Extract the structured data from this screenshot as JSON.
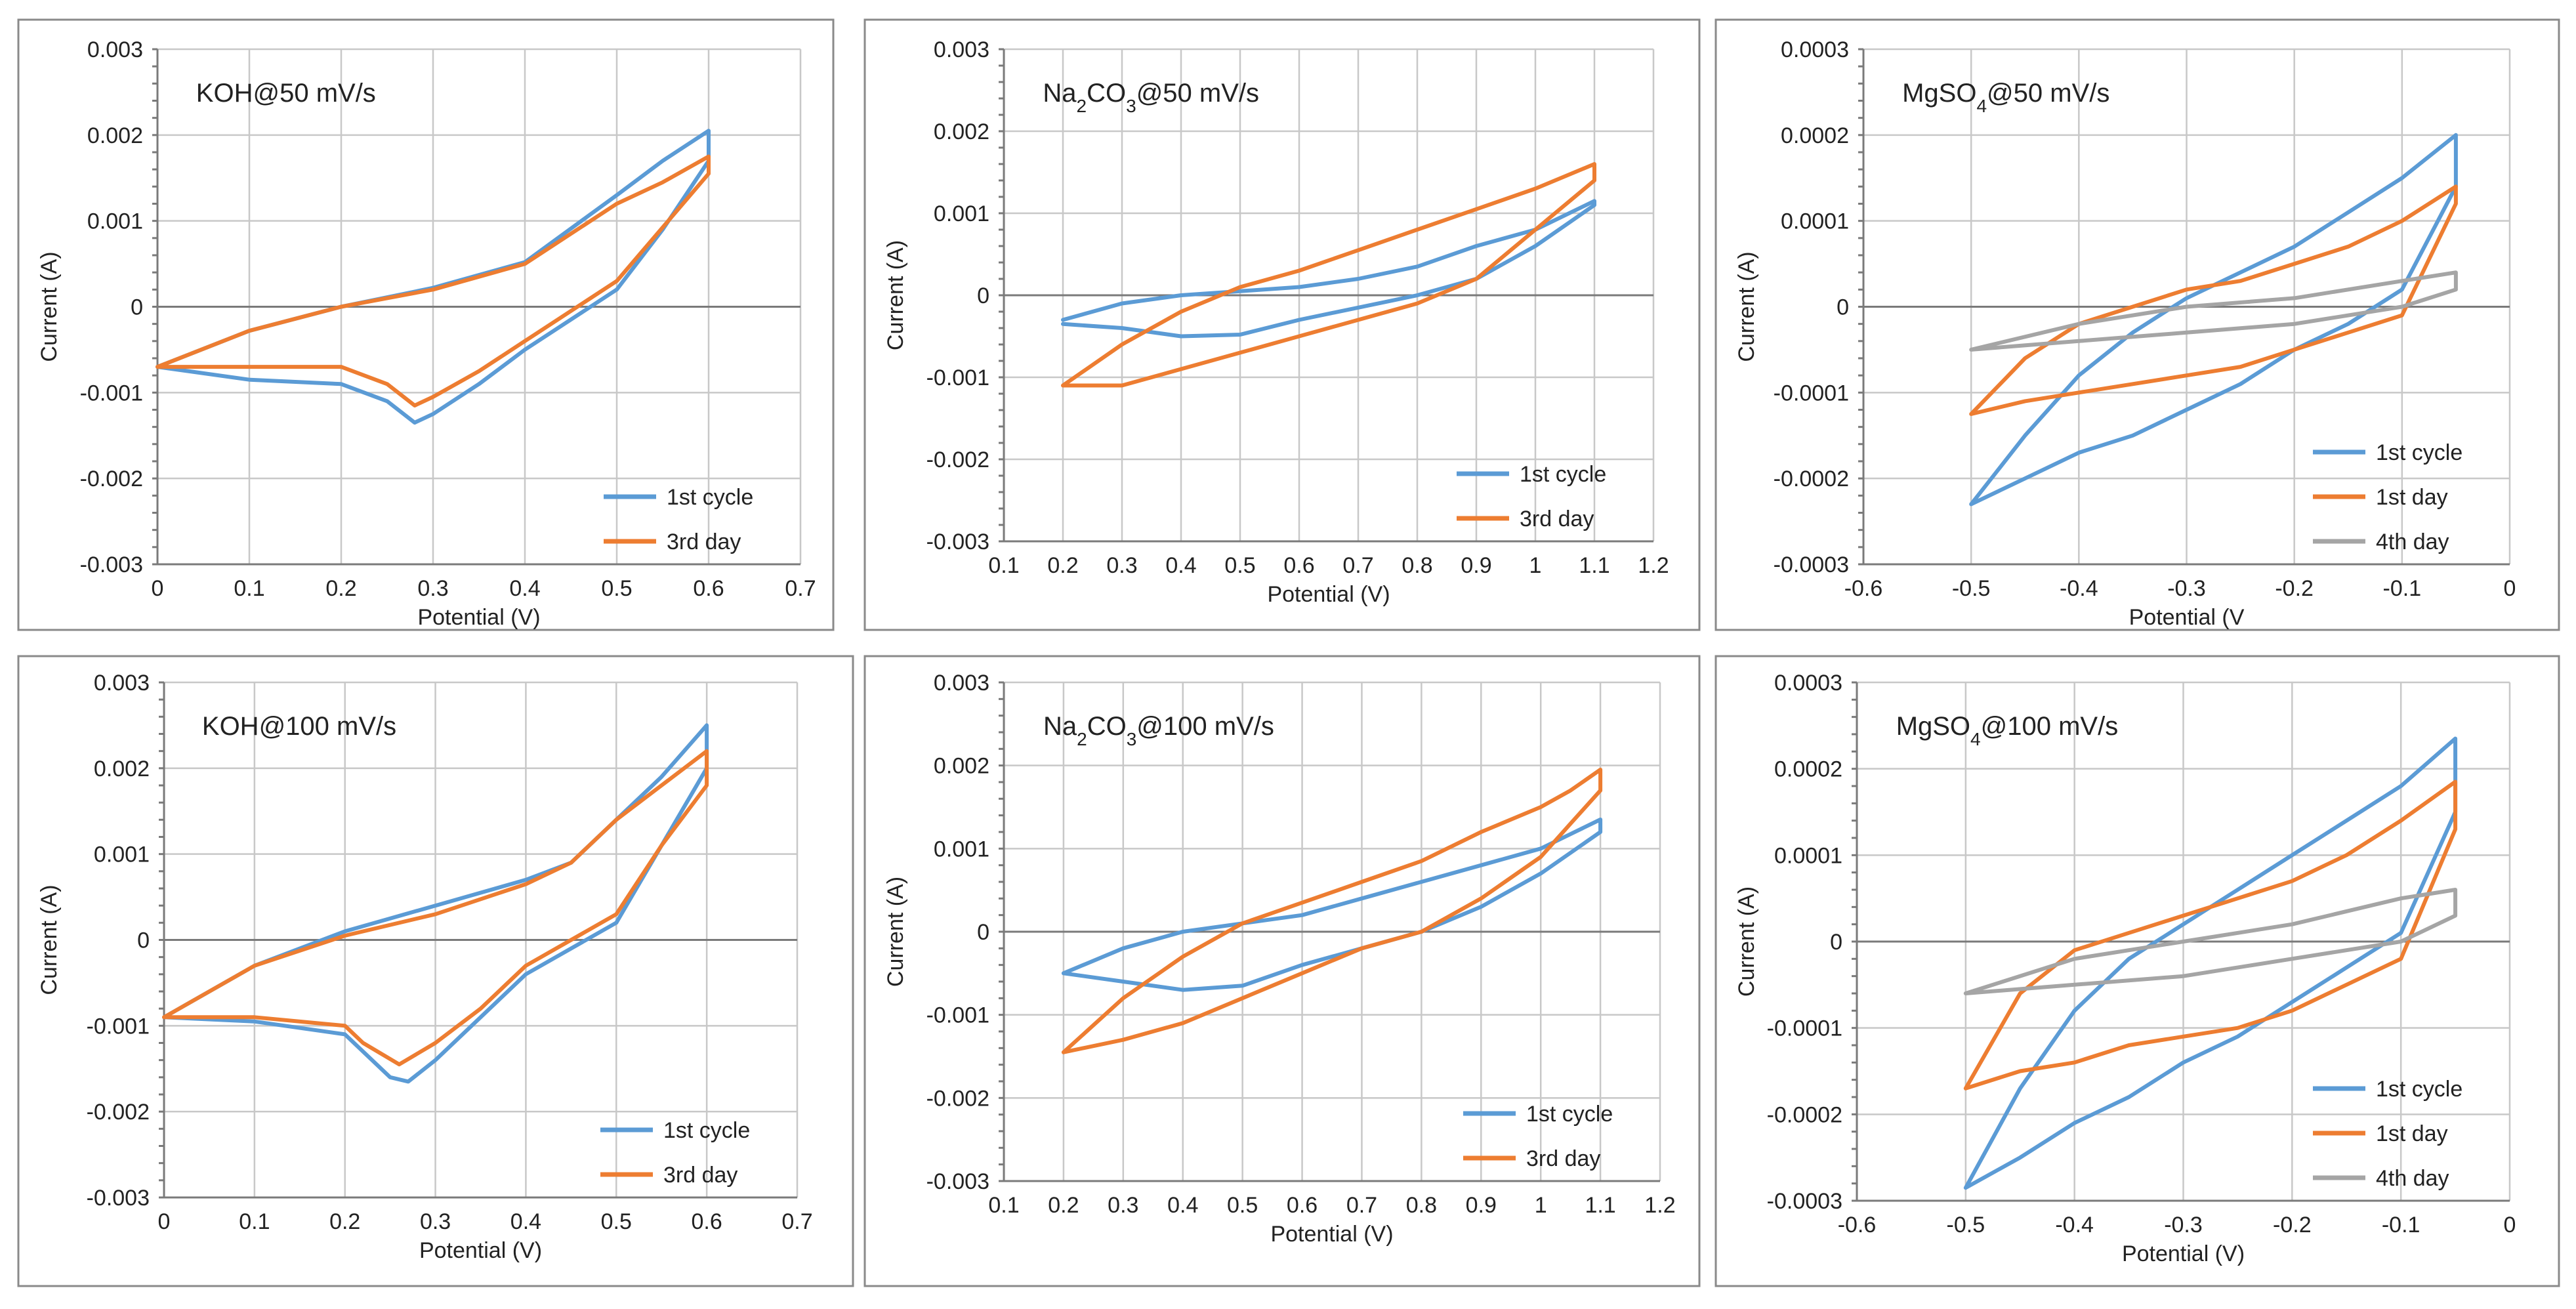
{
  "colors": {
    "series1": "#5b9bd5",
    "series2": "#ed7d31",
    "series3": "#a5a5a5"
  },
  "chart_data": [
    {
      "type": "line",
      "title": "KOH@50 mV/s",
      "title_parts": [
        {
          "t": "KOH@50 mV/s"
        }
      ],
      "xlabel": "Potential (V)",
      "ylabel": "Current (A)",
      "xlim": [
        0,
        0.7
      ],
      "ylim": [
        -0.003,
        0.003
      ],
      "grid": true,
      "legend": "bottom-right",
      "xticks": [
        0,
        0.1,
        0.2,
        0.3,
        0.4,
        0.5,
        0.6,
        0.7
      ],
      "xtick_labels": [
        "0",
        "0.1",
        "0.2",
        "0.3",
        "0.4",
        "0.5",
        "0.6",
        "0.7"
      ],
      "yticks": [
        -0.003,
        -0.002,
        -0.001,
        0,
        0.001,
        0.002,
        0.003
      ],
      "ytick_labels": [
        "-0.003",
        "-0.002",
        "-0.001",
        "0",
        "0.001",
        "0.002",
        "0.003"
      ],
      "series": [
        {
          "name": "1st cycle",
          "color": "#5b9bd5",
          "x": [
            0,
            0.1,
            0.2,
            0.3,
            0.4,
            0.5,
            0.55,
            0.6,
            0.6,
            0.55,
            0.5,
            0.4,
            0.35,
            0.3,
            0.28,
            0.25,
            0.2,
            0.1,
            0
          ],
          "y": [
            -0.0007,
            -0.00028,
            0.0,
            0.00022,
            0.00052,
            0.0013,
            0.0017,
            0.00205,
            0.0017,
            0.0009,
            0.0002,
            -0.0005,
            -0.0009,
            -0.00125,
            -0.00135,
            -0.0011,
            -0.0009,
            -0.00085,
            -0.0007
          ]
        },
        {
          "name": "3rd day",
          "color": "#ed7d31",
          "x": [
            0,
            0.1,
            0.2,
            0.3,
            0.4,
            0.5,
            0.55,
            0.6,
            0.6,
            0.5,
            0.4,
            0.35,
            0.3,
            0.28,
            0.25,
            0.2,
            0.1,
            0
          ],
          "y": [
            -0.0007,
            -0.00028,
            0.0,
            0.0002,
            0.0005,
            0.0012,
            0.00145,
            0.00175,
            0.00155,
            0.0003,
            -0.0004,
            -0.00075,
            -0.00105,
            -0.00115,
            -0.0009,
            -0.0007,
            -0.0007,
            -0.0007
          ]
        }
      ]
    },
    {
      "type": "line",
      "title": "Na2CO3@50 mV/s",
      "title_parts": [
        {
          "t": "Na"
        },
        {
          "t": "2",
          "sub": true
        },
        {
          "t": "CO"
        },
        {
          "t": "3",
          "sub": true
        },
        {
          "t": "@50 mV/s"
        }
      ],
      "xlabel": "Potential (V)",
      "ylabel": "Current (A)",
      "xlim": [
        0.1,
        1.2
      ],
      "ylim": [
        -0.003,
        0.003
      ],
      "grid": true,
      "legend": "bottom-right",
      "xticks": [
        0.1,
        0.2,
        0.3,
        0.4,
        0.5,
        0.6,
        0.7,
        0.8,
        0.9,
        1.0,
        1.1,
        1.2
      ],
      "xtick_labels": [
        "0.1",
        "0.2",
        "0.3",
        "0.4",
        "0.5",
        "0.6",
        "0.7",
        "0.8",
        "0.9",
        "1",
        "1.1",
        "1.2"
      ],
      "yticks": [
        -0.003,
        -0.002,
        -0.001,
        0,
        0.001,
        0.002,
        0.003
      ],
      "ytick_labels": [
        "-0.003",
        "-0.002",
        "-0.001",
        "0",
        "0.001",
        "0.002",
        "0.003"
      ],
      "series": [
        {
          "name": "1st cycle",
          "color": "#5b9bd5",
          "x": [
            0.2,
            0.3,
            0.4,
            0.5,
            0.6,
            0.7,
            0.8,
            0.9,
            1.0,
            1.1,
            1.1,
            1.0,
            0.9,
            0.8,
            0.7,
            0.6,
            0.5,
            0.4,
            0.3,
            0.2
          ],
          "y": [
            -0.0003,
            -0.0001,
            0.0,
            5e-05,
            0.0001,
            0.0002,
            0.00035,
            0.0006,
            0.0008,
            0.00115,
            0.0011,
            0.0006,
            0.0002,
            0.0,
            -0.00015,
            -0.0003,
            -0.00048,
            -0.0005,
            -0.0004,
            -0.00035
          ]
        },
        {
          "name": "3rd day",
          "color": "#ed7d31",
          "x": [
            0.2,
            0.3,
            0.4,
            0.5,
            0.6,
            0.7,
            0.8,
            0.9,
            1.0,
            1.1,
            1.1,
            1.0,
            0.9,
            0.8,
            0.7,
            0.6,
            0.5,
            0.4,
            0.3,
            0.2
          ],
          "y": [
            -0.0011,
            -0.0006,
            -0.0002,
            0.0001,
            0.0003,
            0.00055,
            0.0008,
            0.00105,
            0.0013,
            0.0016,
            0.0014,
            0.0008,
            0.0002,
            -0.0001,
            -0.0003,
            -0.0005,
            -0.0007,
            -0.0009,
            -0.0011,
            -0.0011
          ]
        }
      ]
    },
    {
      "type": "line",
      "title": "MgSO4@50 mV/s",
      "title_parts": [
        {
          "t": "MgSO"
        },
        {
          "t": "4",
          "sub": true
        },
        {
          "t": "@50 mV/s"
        }
      ],
      "xlabel": "Potential (V",
      "ylabel": "Current (A)",
      "xlim": [
        -0.6,
        0
      ],
      "ylim": [
        -0.0003,
        0.0003
      ],
      "grid": true,
      "legend": "bottom-right",
      "xticks": [
        -0.6,
        -0.5,
        -0.4,
        -0.3,
        -0.2,
        -0.1,
        0
      ],
      "xtick_labels": [
        "-0.6",
        "-0.5",
        "-0.4",
        "-0.3",
        "-0.2",
        "-0.1",
        "0"
      ],
      "yticks": [
        -0.0003,
        -0.0002,
        -0.0001,
        0,
        0.0001,
        0.0002,
        0.0003
      ],
      "ytick_labels": [
        "-0.0003",
        "-0.0002",
        "-0.0001",
        "0",
        "0.0001",
        "0.0002",
        "0.0003"
      ],
      "series": [
        {
          "name": "1st cycle",
          "color": "#5b9bd5",
          "x": [
            -0.5,
            -0.45,
            -0.4,
            -0.35,
            -0.3,
            -0.25,
            -0.2,
            -0.15,
            -0.1,
            -0.05,
            -0.05,
            -0.1,
            -0.15,
            -0.2,
            -0.25,
            -0.3,
            -0.35,
            -0.4,
            -0.45,
            -0.5
          ],
          "y": [
            -0.00023,
            -0.0002,
            -0.00017,
            -0.00015,
            -0.00012,
            -9e-05,
            -5e-05,
            -2e-05,
            2e-05,
            0.00014,
            0.0002,
            0.00015,
            0.00011,
            7e-05,
            4e-05,
            1e-05,
            -3e-05,
            -8e-05,
            -0.00015,
            -0.00023
          ]
        },
        {
          "name": "1st day",
          "color": "#ed7d31",
          "x": [
            -0.5,
            -0.45,
            -0.4,
            -0.35,
            -0.3,
            -0.25,
            -0.2,
            -0.15,
            -0.1,
            -0.05,
            -0.05,
            -0.1,
            -0.15,
            -0.2,
            -0.25,
            -0.3,
            -0.35,
            -0.4,
            -0.45,
            -0.5
          ],
          "y": [
            -0.000125,
            -0.00011,
            -0.0001,
            -9e-05,
            -8e-05,
            -7e-05,
            -5e-05,
            -3e-05,
            -1e-05,
            0.00012,
            0.00014,
            0.0001,
            7e-05,
            5e-05,
            3e-05,
            2e-05,
            0.0,
            -2e-05,
            -6e-05,
            -0.000125
          ]
        },
        {
          "name": "4th day",
          "color": "#a5a5a5",
          "x": [
            -0.5,
            -0.4,
            -0.3,
            -0.2,
            -0.1,
            -0.05,
            -0.05,
            -0.1,
            -0.2,
            -0.3,
            -0.4,
            -0.5
          ],
          "y": [
            -5e-05,
            -4e-05,
            -3e-05,
            -2e-05,
            0.0,
            2e-05,
            4e-05,
            3e-05,
            1e-05,
            0.0,
            -2e-05,
            -5e-05
          ]
        }
      ]
    },
    {
      "type": "line",
      "title": "KOH@100 mV/s",
      "title_parts": [
        {
          "t": "KOH@100 mV/s"
        }
      ],
      "xlabel": "Potential (V)",
      "ylabel": "Current (A)",
      "xlim": [
        0,
        0.7
      ],
      "ylim": [
        -0.003,
        0.003
      ],
      "grid": true,
      "legend": "bottom-right",
      "xticks": [
        0,
        0.1,
        0.2,
        0.3,
        0.4,
        0.5,
        0.6,
        0.7
      ],
      "xtick_labels": [
        "0",
        "0.1",
        "0.2",
        "0.3",
        "0.4",
        "0.5",
        "0.6",
        "0.7"
      ],
      "yticks": [
        -0.003,
        -0.002,
        -0.001,
        0,
        0.001,
        0.002,
        0.003
      ],
      "ytick_labels": [
        "-0.003",
        "-0.002",
        "-0.001",
        "0",
        "0.001",
        "0.002",
        "0.003"
      ],
      "series": [
        {
          "name": "1st cycle",
          "color": "#5b9bd5",
          "x": [
            0,
            0.1,
            0.2,
            0.3,
            0.4,
            0.45,
            0.5,
            0.55,
            0.6,
            0.6,
            0.55,
            0.5,
            0.4,
            0.35,
            0.3,
            0.27,
            0.25,
            0.2,
            0.1,
            0
          ],
          "y": [
            -0.0009,
            -0.0003,
            0.0001,
            0.0004,
            0.0007,
            0.0009,
            0.0014,
            0.0019,
            0.0025,
            0.002,
            0.0011,
            0.0002,
            -0.0004,
            -0.0009,
            -0.0014,
            -0.00165,
            -0.0016,
            -0.0011,
            -0.00095,
            -0.0009
          ]
        },
        {
          "name": "3rd day",
          "color": "#ed7d31",
          "x": [
            0,
            0.1,
            0.2,
            0.3,
            0.4,
            0.45,
            0.5,
            0.55,
            0.6,
            0.6,
            0.55,
            0.5,
            0.4,
            0.35,
            0.3,
            0.26,
            0.22,
            0.2,
            0.1,
            0
          ],
          "y": [
            -0.0009,
            -0.0003,
            5e-05,
            0.0003,
            0.00065,
            0.0009,
            0.0014,
            0.0018,
            0.0022,
            0.0018,
            0.0011,
            0.0003,
            -0.0003,
            -0.0008,
            -0.0012,
            -0.00145,
            -0.0012,
            -0.001,
            -0.0009,
            -0.0009
          ]
        }
      ]
    },
    {
      "type": "line",
      "title": "Na2CO3@100 mV/s",
      "title_parts": [
        {
          "t": "Na"
        },
        {
          "t": "2",
          "sub": true
        },
        {
          "t": "CO"
        },
        {
          "t": "3",
          "sub": true
        },
        {
          "t": "@100 mV/s"
        }
      ],
      "xlabel": "Potential (V)",
      "ylabel": "Current (A)",
      "xlim": [
        0.1,
        1.2
      ],
      "ylim": [
        -0.003,
        0.003
      ],
      "grid": true,
      "legend": "bottom-right",
      "xticks": [
        0.1,
        0.2,
        0.3,
        0.4,
        0.5,
        0.6,
        0.7,
        0.8,
        0.9,
        1.0,
        1.1,
        1.2
      ],
      "xtick_labels": [
        "0.1",
        "0.2",
        "0.3",
        "0.4",
        "0.5",
        "0.6",
        "0.7",
        "0.8",
        "0.9",
        "1",
        "1.1",
        "1.2"
      ],
      "yticks": [
        -0.003,
        -0.002,
        -0.001,
        0,
        0.001,
        0.002,
        0.003
      ],
      "ytick_labels": [
        "-0.003",
        "-0.002",
        "-0.001",
        "0",
        "0.001",
        "0.002",
        "0.003"
      ],
      "series": [
        {
          "name": "1st cycle",
          "color": "#5b9bd5",
          "x": [
            0.2,
            0.3,
            0.4,
            0.5,
            0.6,
            0.7,
            0.8,
            0.9,
            1.0,
            1.1,
            1.1,
            1.0,
            0.9,
            0.8,
            0.7,
            0.6,
            0.5,
            0.4,
            0.3,
            0.2
          ],
          "y": [
            -0.0005,
            -0.0002,
            0.0,
            0.0001,
            0.0002,
            0.0004,
            0.0006,
            0.0008,
            0.001,
            0.00135,
            0.0012,
            0.0007,
            0.0003,
            0.0,
            -0.0002,
            -0.0004,
            -0.00065,
            -0.0007,
            -0.0006,
            -0.0005
          ]
        },
        {
          "name": "3rd day",
          "color": "#ed7d31",
          "x": [
            0.2,
            0.3,
            0.4,
            0.5,
            0.6,
            0.7,
            0.8,
            0.9,
            1.0,
            1.05,
            1.1,
            1.1,
            1.05,
            1.0,
            0.9,
            0.8,
            0.7,
            0.6,
            0.5,
            0.4,
            0.3,
            0.2
          ],
          "y": [
            -0.00145,
            -0.0008,
            -0.0003,
            0.0001,
            0.00035,
            0.0006,
            0.00085,
            0.0012,
            0.0015,
            0.0017,
            0.00195,
            0.0017,
            0.0013,
            0.0009,
            0.0004,
            0.0,
            -0.0002,
            -0.0005,
            -0.0008,
            -0.0011,
            -0.0013,
            -0.00145
          ]
        }
      ]
    },
    {
      "type": "line",
      "title": "MgSO4@100 mV/s",
      "title_parts": [
        {
          "t": "MgSO"
        },
        {
          "t": "4",
          "sub": true
        },
        {
          "t": "@100 mV/s"
        }
      ],
      "xlabel": "Potential (V)",
      "ylabel": "Current (A)",
      "xlim": [
        -0.6,
        0
      ],
      "ylim": [
        -0.0003,
        0.0003
      ],
      "grid": true,
      "legend": "bottom-right",
      "xticks": [
        -0.6,
        -0.5,
        -0.4,
        -0.3,
        -0.2,
        -0.1,
        0
      ],
      "xtick_labels": [
        "-0.6",
        "-0.5",
        "-0.4",
        "-0.3",
        "-0.2",
        "-0.1",
        "0"
      ],
      "yticks": [
        -0.0003,
        -0.0002,
        -0.0001,
        0,
        0.0001,
        0.0002,
        0.0003
      ],
      "ytick_labels": [
        "-0.0003",
        "-0.0002",
        "-0.0001",
        "0",
        "0.0001",
        "0.0002",
        "0.0003"
      ],
      "series": [
        {
          "name": "1st cycle",
          "color": "#5b9bd5",
          "x": [
            -0.5,
            -0.45,
            -0.4,
            -0.35,
            -0.3,
            -0.25,
            -0.2,
            -0.15,
            -0.1,
            -0.05,
            -0.05,
            -0.1,
            -0.15,
            -0.2,
            -0.25,
            -0.3,
            -0.35,
            -0.4,
            -0.45,
            -0.5
          ],
          "y": [
            -0.000285,
            -0.00025,
            -0.00021,
            -0.00018,
            -0.00014,
            -0.00011,
            -7e-05,
            -3e-05,
            1e-05,
            0.00015,
            0.000235,
            0.00018,
            0.00014,
            0.0001,
            6e-05,
            2e-05,
            -2e-05,
            -8e-05,
            -0.00017,
            -0.000285
          ]
        },
        {
          "name": "1st day",
          "color": "#ed7d31",
          "x": [
            -0.5,
            -0.45,
            -0.4,
            -0.35,
            -0.3,
            -0.25,
            -0.2,
            -0.15,
            -0.1,
            -0.05,
            -0.05,
            -0.1,
            -0.15,
            -0.2,
            -0.25,
            -0.3,
            -0.35,
            -0.4,
            -0.45,
            -0.5
          ],
          "y": [
            -0.00017,
            -0.00015,
            -0.00014,
            -0.00012,
            -0.00011,
            -0.0001,
            -8e-05,
            -5e-05,
            -2e-05,
            0.00013,
            0.000185,
            0.00014,
            0.0001,
            7e-05,
            5e-05,
            3e-05,
            1e-05,
            -1e-05,
            -6e-05,
            -0.00017
          ]
        },
        {
          "name": "4th day",
          "color": "#a5a5a5",
          "x": [
            -0.5,
            -0.4,
            -0.3,
            -0.2,
            -0.1,
            -0.05,
            -0.05,
            -0.1,
            -0.2,
            -0.3,
            -0.4,
            -0.5
          ],
          "y": [
            -6e-05,
            -5e-05,
            -4e-05,
            -2e-05,
            0.0,
            3e-05,
            6e-05,
            5e-05,
            2e-05,
            0.0,
            -2e-05,
            -6e-05
          ]
        }
      ]
    }
  ]
}
